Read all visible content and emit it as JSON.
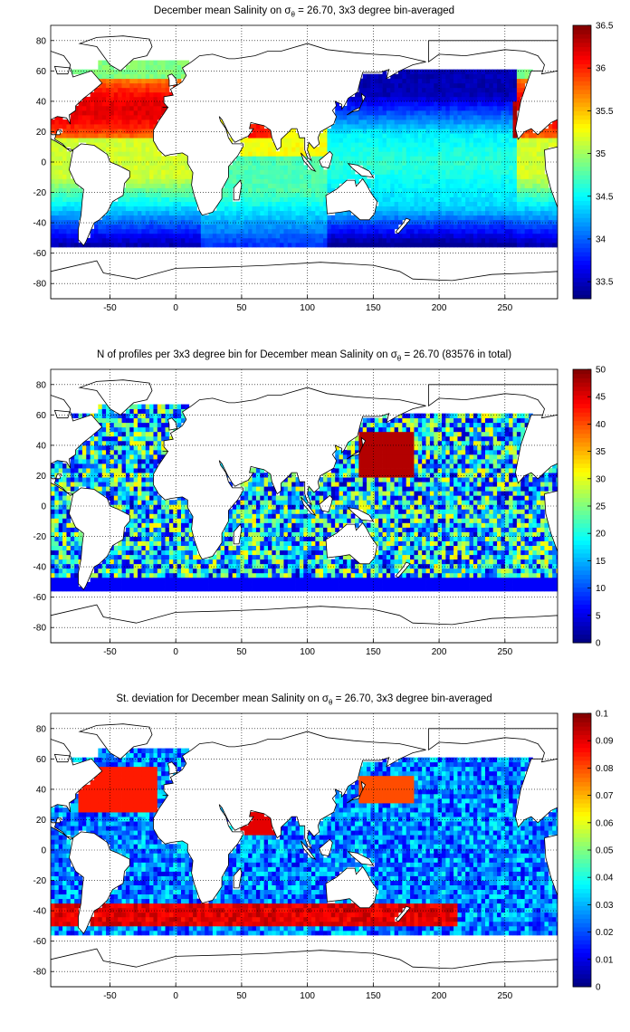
{
  "map_extent": {
    "lon": [
      -95,
      290
    ],
    "lat": [
      -90,
      90
    ]
  },
  "lon_ticks": [
    "-50",
    "0",
    "50",
    "100",
    "150",
    "200",
    "250"
  ],
  "lat_ticks": [
    "80",
    "60",
    "40",
    "20",
    "0",
    "-20",
    "-40",
    "-60",
    "-80"
  ],
  "panels": [
    {
      "title_pre": "December mean Salinity on ",
      "sigma": "σ",
      "sigma_sub": "θ",
      "title_post": " = 26.70, 3x3 degree bin-averaged",
      "colorbar_ticks": [
        "36.5",
        "36",
        "35.5",
        "35",
        "34.5",
        "34",
        "33.5"
      ],
      "colorbar_range": [
        33.3,
        36.5
      ],
      "colormap": "jet"
    },
    {
      "title_pre": "N of profiles per 3x3 degree bin for December mean Salinity on ",
      "sigma": "σ",
      "sigma_sub": "θ",
      "title_post": " = 26.70 (83576 in total)",
      "colorbar_ticks": [
        "50",
        "45",
        "40",
        "35",
        "30",
        "25",
        "20",
        "15",
        "10",
        "5",
        "0"
      ],
      "colorbar_range": [
        0,
        50
      ],
      "colormap": "jet"
    },
    {
      "title_pre": "St. deviation for December mean Salinity on ",
      "sigma": "σ",
      "sigma_sub": "θ",
      "title_post": " = 26.70, 3x3 degree bin-averaged",
      "colorbar_ticks": [
        "0.1",
        "0.09",
        "0.08",
        "0.07",
        "0.06",
        "0.05",
        "0.04",
        "0.03",
        "0.02",
        "0.01",
        "0"
      ],
      "colorbar_range": [
        0,
        0.1
      ],
      "colormap": "jet"
    }
  ]
}
